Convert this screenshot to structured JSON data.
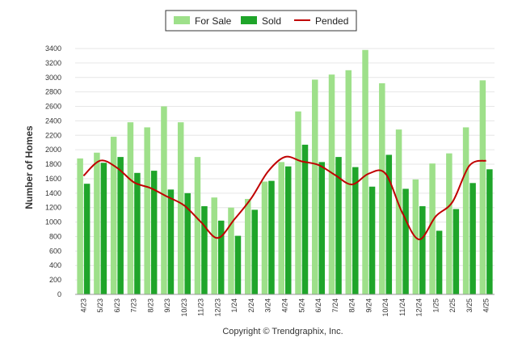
{
  "chart_data": {
    "type": "bar",
    "ylabel": "Number of Homes",
    "ylim": [
      0,
      3400
    ],
    "ytick_step": 200,
    "grid": true,
    "legend_position": "top-center",
    "categories": [
      "4/23",
      "5/23",
      "6/23",
      "7/23",
      "8/23",
      "9/23",
      "10/23",
      "11/23",
      "12/23",
      "1/24",
      "2/24",
      "3/24",
      "4/24",
      "5/24",
      "6/24",
      "7/24",
      "8/24",
      "9/24",
      "10/24",
      "11/24",
      "12/24",
      "1/25",
      "2/25",
      "3/25",
      "4/25"
    ],
    "series": [
      {
        "name": "For Sale",
        "type": "bar",
        "color": "#9ee08a",
        "values": [
          1880,
          1960,
          2180,
          2380,
          2310,
          2600,
          2380,
          1900,
          1340,
          1200,
          1320,
          1560,
          1830,
          2530,
          2970,
          3040,
          3100,
          3380,
          2920,
          2280,
          1590,
          1810,
          1950,
          2310,
          2960
        ]
      },
      {
        "name": "Sold",
        "type": "bar",
        "color": "#1fa52a",
        "values": [
          1530,
          1820,
          1900,
          1680,
          1710,
          1450,
          1400,
          1220,
          1020,
          810,
          1170,
          1570,
          1770,
          2070,
          1830,
          1900,
          1760,
          1490,
          1930,
          1460,
          1220,
          880,
          1180,
          1540,
          1730
        ]
      },
      {
        "name": "Pended",
        "type": "line",
        "color": "#c00000",
        "values": [
          1640,
          1850,
          1750,
          1550,
          1470,
          1350,
          1230,
          1000,
          780,
          1040,
          1330,
          1700,
          1900,
          1840,
          1790,
          1650,
          1520,
          1670,
          1670,
          1130,
          760,
          1080,
          1280,
          1780,
          1850
        ]
      }
    ]
  },
  "copyright": "Copyright © Trendgraphix, Inc."
}
